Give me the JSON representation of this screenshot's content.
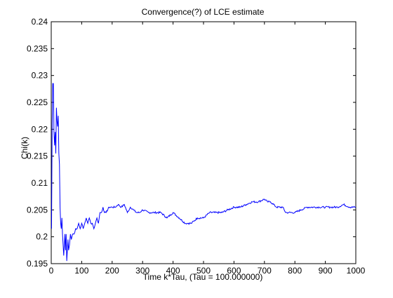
{
  "chart_data": {
    "type": "line",
    "title": "Convergence(?) of LCE estimate",
    "xlabel": "Time k*Tau, (Tau = 100.000000)",
    "ylabel": "Chi(k)",
    "xlim": [
      0,
      1000
    ],
    "ylim": [
      0.195,
      0.24
    ],
    "grid": false,
    "x_ticks": [
      0,
      100,
      200,
      300,
      400,
      500,
      600,
      700,
      800,
      900,
      1000
    ],
    "x_tick_labels": [
      "0",
      "100",
      "200",
      "300",
      "400",
      "500",
      "600",
      "700",
      "800",
      "900",
      "1000"
    ],
    "y_ticks": [
      0.195,
      0.2,
      0.205,
      0.21,
      0.215,
      0.22,
      0.225,
      0.23,
      0.235,
      0.24
    ],
    "y_tick_labels": [
      "0.195",
      "0.2",
      "0.205",
      "0.21",
      "0.215",
      "0.22",
      "0.225",
      "0.23",
      "0.235",
      "0.24"
    ],
    "line_color": "#0000ff",
    "series": [
      {
        "x": [
          1,
          3,
          5,
          7,
          9,
          11,
          13,
          15,
          17,
          19,
          21,
          23,
          25,
          27,
          29,
          31,
          33,
          35,
          37,
          39,
          41,
          43,
          45,
          47,
          49,
          51,
          53,
          55,
          57,
          60,
          63,
          66,
          70,
          75,
          80,
          85,
          90,
          95,
          100,
          105,
          110,
          115,
          120,
          125,
          130,
          135,
          140,
          145,
          150,
          155,
          160,
          165,
          170,
          175,
          180,
          190,
          200,
          210,
          220,
          230,
          240,
          250,
          260,
          270,
          280,
          290,
          300,
          320,
          340,
          360,
          380,
          400,
          420,
          440,
          450,
          460,
          480,
          500,
          520,
          540,
          560,
          580,
          600,
          620,
          640,
          660,
          680,
          700,
          710,
          720,
          740,
          760,
          770,
          780,
          800,
          820,
          840,
          860,
          880,
          900,
          920,
          940,
          960,
          980,
          1000
        ],
        "y": [
          0.2015,
          0.221,
          0.2285,
          0.2285,
          0.2195,
          0.217,
          0.2195,
          0.2155,
          0.224,
          0.2215,
          0.2205,
          0.2225,
          0.2155,
          0.2135,
          0.2055,
          0.2025,
          0.2015,
          0.2035,
          0.2005,
          0.1985,
          0.1965,
          0.1985,
          0.2005,
          0.1975,
          0.2005,
          0.1955,
          0.1975,
          0.1995,
          0.1975,
          0.1985,
          0.2005,
          0.1995,
          0.2005,
          0.2005,
          0.2015,
          0.2015,
          0.2025,
          0.2015,
          0.2025,
          0.2015,
          0.2025,
          0.2035,
          0.2025,
          0.2035,
          0.2025,
          0.2025,
          0.2015,
          0.2025,
          0.2035,
          0.2025,
          0.2045,
          0.2045,
          0.2055,
          0.2045,
          0.2045,
          0.2055,
          0.2055,
          0.2055,
          0.206,
          0.2055,
          0.206,
          0.2045,
          0.2055,
          0.205,
          0.2045,
          0.2045,
          0.205,
          0.2045,
          0.2045,
          0.2045,
          0.2035,
          0.2045,
          0.2035,
          0.2025,
          0.2025,
          0.2025,
          0.2035,
          0.2035,
          0.2045,
          0.2045,
          0.2045,
          0.205,
          0.2055,
          0.2055,
          0.206,
          0.2065,
          0.2065,
          0.207,
          0.2065,
          0.2065,
          0.2055,
          0.2055,
          0.2045,
          0.2045,
          0.2045,
          0.205,
          0.2055,
          0.2055,
          0.2055,
          0.2055,
          0.2055,
          0.2055,
          0.206,
          0.2055,
          0.2055
        ]
      }
    ]
  }
}
